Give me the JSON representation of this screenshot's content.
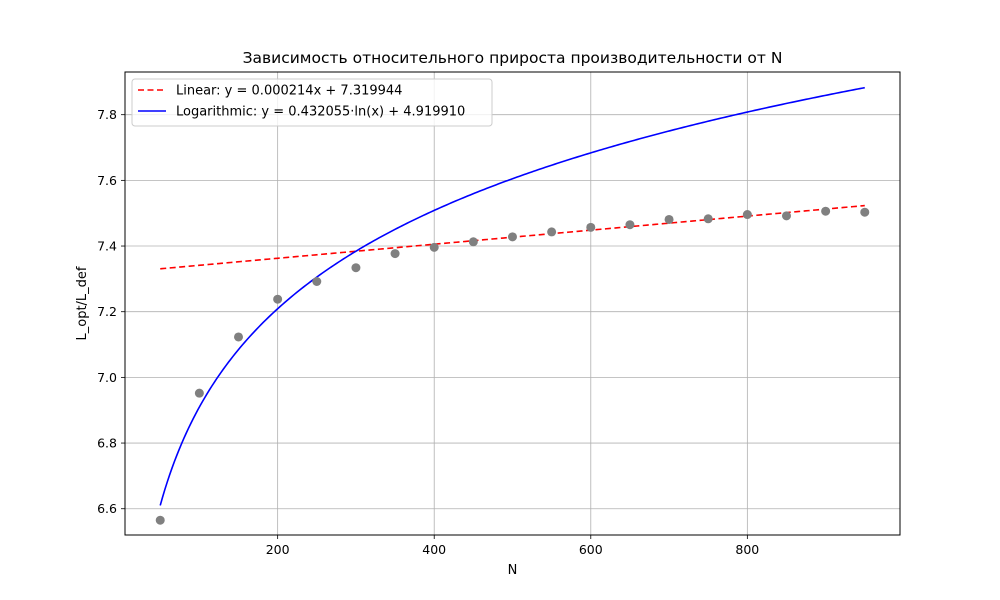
{
  "chart_data": {
    "type": "scatter",
    "title": "Зависимость относительного прироста производительности от N",
    "xlabel": "N",
    "ylabel": "L_opt/L_def",
    "xlim": [
      5,
      995
    ],
    "ylim": [
      6.52,
      7.93
    ],
    "grid": true,
    "legend_position": "top-left",
    "x_ticks": [
      200,
      400,
      600,
      800
    ],
    "x_tick_labels": [
      "200",
      "400",
      "600",
      "800"
    ],
    "y_ticks": [
      6.6,
      6.8,
      7.0,
      7.2,
      7.4,
      7.6,
      7.8
    ],
    "y_tick_labels": [
      "6.6",
      "6.8",
      "7.0",
      "7.2",
      "7.4",
      "7.6",
      "7.8"
    ],
    "points": {
      "x": [
        50,
        100,
        150,
        200,
        250,
        300,
        350,
        400,
        450,
        500,
        550,
        600,
        650,
        700,
        750,
        800,
        850,
        900,
        950
      ],
      "y": [
        6.565,
        6.952,
        7.123,
        7.238,
        7.292,
        7.334,
        7.377,
        7.396,
        7.413,
        7.428,
        7.443,
        7.457,
        7.465,
        7.481,
        7.483,
        7.496,
        7.492,
        7.506,
        7.503
      ],
      "color": "#808080"
    },
    "series": [
      {
        "name": "Linear: y = 0.000214x + 7.319944",
        "kind": "linear",
        "slope": 0.000214,
        "intercept": 7.319944,
        "x_range": [
          50,
          950
        ],
        "color": "#ff0000",
        "style": "dashed"
      },
      {
        "name": "Logarithmic: y = 0.432055·ln(x) + 4.919910",
        "kind": "logarithmic",
        "a": 0.432055,
        "b": 4.91991,
        "x_range": [
          50,
          950
        ],
        "color": "#0000ff",
        "style": "solid"
      }
    ]
  }
}
